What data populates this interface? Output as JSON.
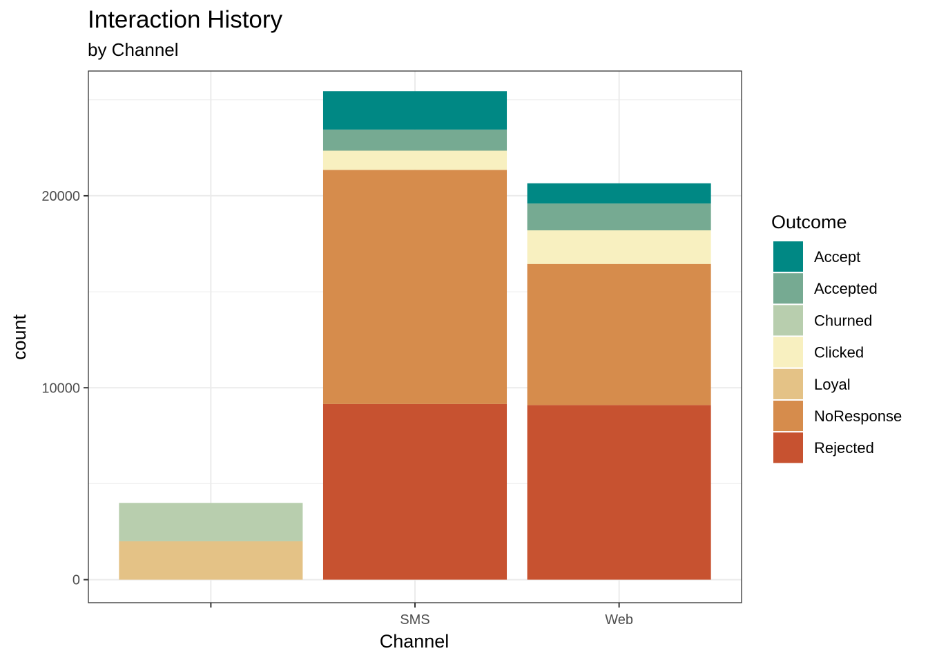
{
  "chart_data": {
    "type": "bar",
    "stacked": true,
    "title": "Interaction History",
    "subtitle": "by Channel",
    "xlabel": "Channel",
    "ylabel": "count",
    "categories": [
      "",
      "SMS",
      "Web"
    ],
    "ylim": [
      -1200,
      26500
    ],
    "yticks": [
      0,
      10000,
      20000
    ],
    "ytick_labels": [
      "0",
      "10000",
      "20000"
    ],
    "grid": true,
    "legend": {
      "title": "Outcome",
      "position": "right"
    },
    "series": [
      {
        "name": "Rejected",
        "color": "#C75230",
        "values": [
          0,
          9150,
          9100
        ]
      },
      {
        "name": "NoResponse",
        "color": "#D68C4C",
        "values": [
          0,
          12200,
          7350
        ]
      },
      {
        "name": "Loyal",
        "color": "#E4C286",
        "values": [
          2000,
          0,
          0
        ]
      },
      {
        "name": "Clicked",
        "color": "#F8F0C0",
        "values": [
          0,
          1000,
          1750
        ]
      },
      {
        "name": "Churned",
        "color": "#B8CEAE",
        "values": [
          2000,
          0,
          0
        ]
      },
      {
        "name": "Accepted",
        "color": "#76AA92",
        "values": [
          0,
          1100,
          1400
        ]
      },
      {
        "name": "Accept",
        "color": "#008884",
        "values": [
          0,
          2000,
          1050
        ]
      }
    ],
    "legend_order": [
      "Accept",
      "Accepted",
      "Churned",
      "Clicked",
      "Loyal",
      "NoResponse",
      "Rejected"
    ]
  }
}
